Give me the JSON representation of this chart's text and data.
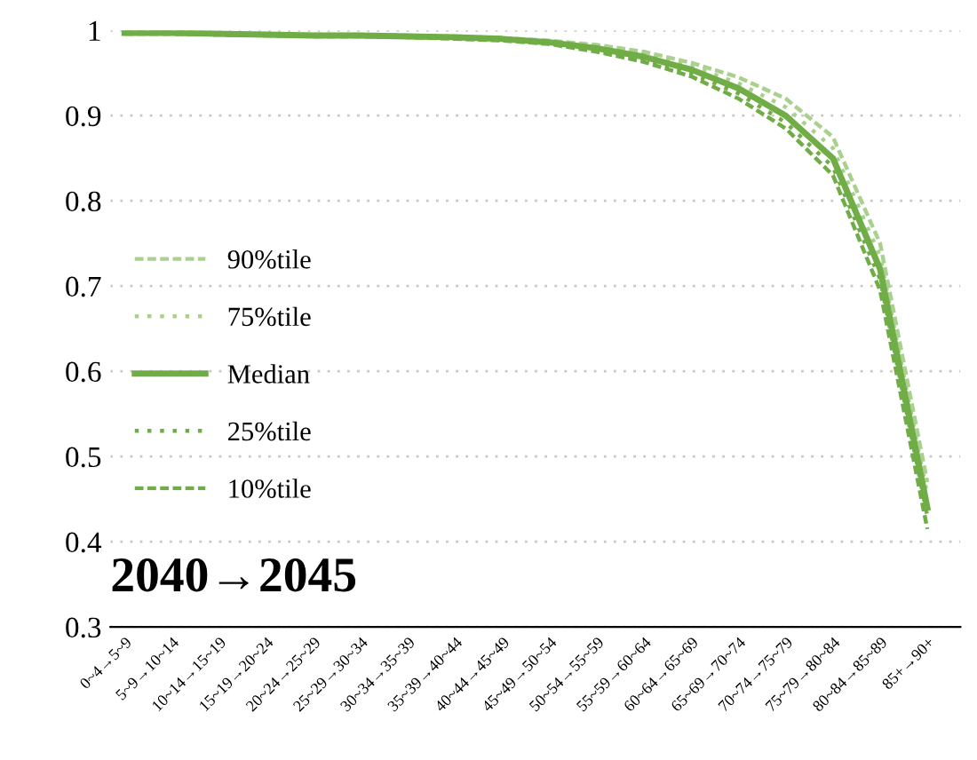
{
  "chart_data": {
    "type": "line",
    "categories": [
      "0~4→5~9",
      "5~9→10~14",
      "10~14→15~19",
      "15~19→20~24",
      "20~24→25~29",
      "25~29→30~34",
      "30~34→35~39",
      "35~39→40~44",
      "40~44→45~49",
      "45~49→50~54",
      "50~54→55~59",
      "55~59→60~64",
      "60~64→65~69",
      "65~69→70~74",
      "70~74→75~79",
      "75~79→80~84",
      "80~84→85~89",
      "85+→90+"
    ],
    "series": [
      {
        "name": "90%tile",
        "color": "#a9d18e",
        "line_style": "dashed",
        "values": [
          0.998,
          0.998,
          0.997,
          0.996,
          0.995,
          0.995,
          0.994,
          0.993,
          0.991,
          0.988,
          0.983,
          0.975,
          0.962,
          0.945,
          0.92,
          0.875,
          0.75,
          0.47
        ]
      },
      {
        "name": "75%tile",
        "color": "#a9d18e",
        "line_style": "dotted",
        "values": [
          0.997,
          0.997,
          0.996,
          0.995,
          0.995,
          0.994,
          0.993,
          0.992,
          0.99,
          0.987,
          0.981,
          0.972,
          0.958,
          0.938,
          0.91,
          0.862,
          0.735,
          0.455
        ]
      },
      {
        "name": "Median",
        "color": "#70ad47",
        "line_style": "solid",
        "values": [
          0.997,
          0.997,
          0.996,
          0.995,
          0.994,
          0.994,
          0.993,
          0.992,
          0.99,
          0.986,
          0.979,
          0.969,
          0.954,
          0.932,
          0.9,
          0.85,
          0.72,
          0.44
        ]
      },
      {
        "name": "25%tile",
        "color": "#70ad47",
        "line_style": "dotted",
        "values": [
          0.997,
          0.996,
          0.995,
          0.995,
          0.994,
          0.993,
          0.992,
          0.991,
          0.989,
          0.985,
          0.977,
          0.966,
          0.95,
          0.926,
          0.892,
          0.84,
          0.708,
          0.43
        ]
      },
      {
        "name": "10%tile",
        "color": "#70ad47",
        "line_style": "dashed",
        "values": [
          0.996,
          0.996,
          0.995,
          0.994,
          0.993,
          0.993,
          0.992,
          0.99,
          0.988,
          0.984,
          0.975,
          0.963,
          0.946,
          0.92,
          0.885,
          0.83,
          0.695,
          0.415
        ]
      }
    ],
    "ylim": [
      0.3,
      1
    ],
    "yticks": [
      0.3,
      0.4,
      0.5,
      0.6,
      0.7,
      0.8,
      0.9,
      {
        "value": 1,
        "label": "1"
      }
    ],
    "grid": "y",
    "legend": "left",
    "annotations": [
      "2040→2045"
    ]
  }
}
